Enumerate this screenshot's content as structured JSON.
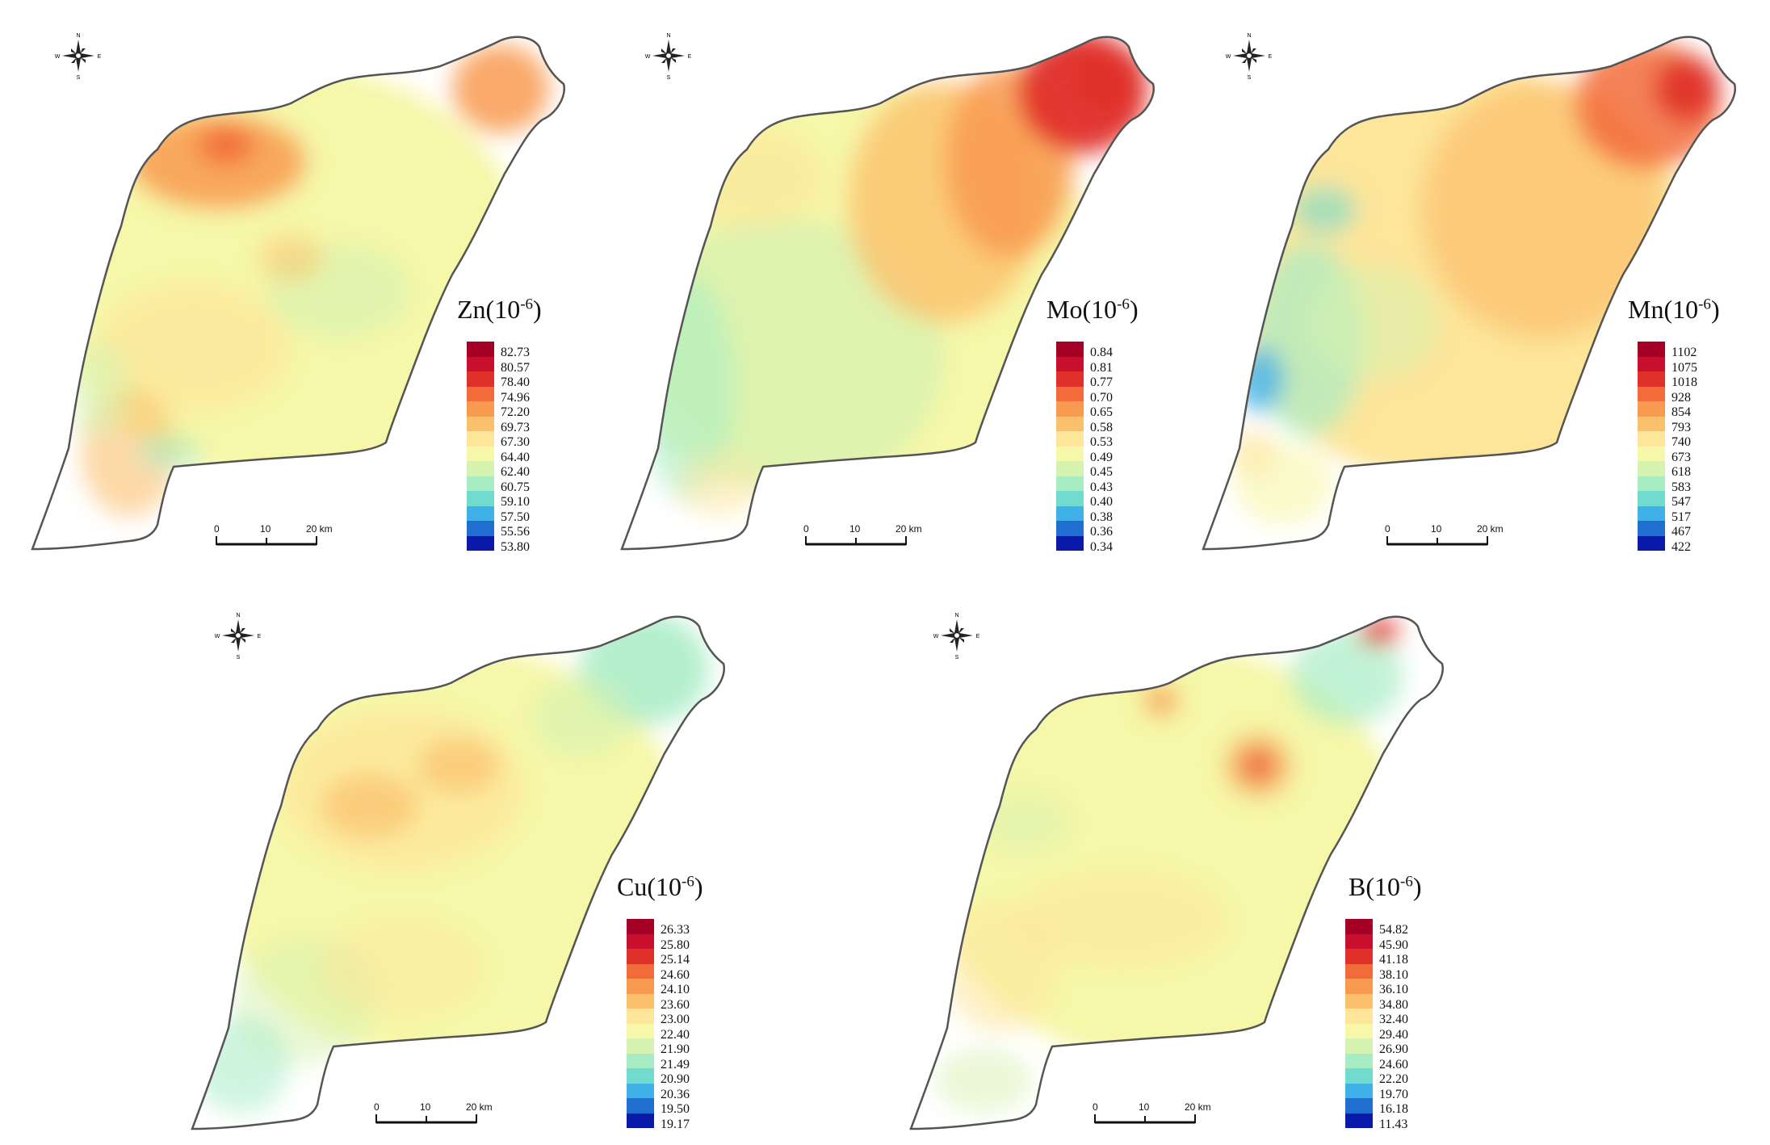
{
  "compass": {
    "north": "N",
    "south": "S",
    "east": "E",
    "west": "W"
  },
  "scalebar": {
    "ticks": [
      "0",
      "10",
      "20 km"
    ]
  },
  "palette": [
    "#a50026",
    "#c8102e",
    "#e0302a",
    "#f26b3a",
    "#f89a4f",
    "#fbc06c",
    "#fde59a",
    "#f6f7a8",
    "#d6f2b0",
    "#a8ecc4",
    "#72dbd0",
    "#3fb0e8",
    "#1f6fd1",
    "#0a1aa8"
  ],
  "panels": [
    {
      "id": "zn",
      "element": "Zn",
      "title_base": "Zn(10",
      "title_exp": "-6",
      "title_end": ")",
      "labels": [
        "82.73",
        "80.57",
        "78.40",
        "74.96",
        "72.20",
        "69.73",
        "67.30",
        "64.40",
        "62.40",
        "60.75",
        "59.10",
        "57.50",
        "55.56",
        "53.80"
      ]
    },
    {
      "id": "mo",
      "element": "Mo",
      "title_base": "Mo(10",
      "title_exp": "-6",
      "title_end": ")",
      "labels": [
        "0.84",
        "0.81",
        "0.77",
        "0.70",
        "0.65",
        "0.58",
        "0.53",
        "0.49",
        "0.45",
        "0.43",
        "0.40",
        "0.38",
        "0.36",
        "0.34"
      ]
    },
    {
      "id": "mn",
      "element": "Mn",
      "title_base": "Mn(10",
      "title_exp": "-6",
      "title_end": ")",
      "labels": [
        "1102",
        "1075",
        "1018",
        "928",
        "854",
        "793",
        "740",
        "673",
        "618",
        "583",
        "547",
        "517",
        "467",
        "422"
      ]
    },
    {
      "id": "cu",
      "element": "Cu",
      "title_base": "Cu(10",
      "title_exp": "-6",
      "title_end": ")",
      "labels": [
        "26.33",
        "25.80",
        "25.14",
        "24.60",
        "24.10",
        "23.60",
        "23.00",
        "22.40",
        "21.90",
        "21.49",
        "20.90",
        "20.36",
        "19.50",
        "19.17"
      ]
    },
    {
      "id": "b",
      "element": "B",
      "title_base": "B(10",
      "title_exp": "-6",
      "title_end": ")",
      "labels": [
        "54.82",
        "45.90",
        "41.18",
        "38.10",
        "36.10",
        "34.80",
        "32.40",
        "29.40",
        "26.90",
        "24.60",
        "22.20",
        "19.70",
        "16.18",
        "11.43"
      ]
    }
  ]
}
